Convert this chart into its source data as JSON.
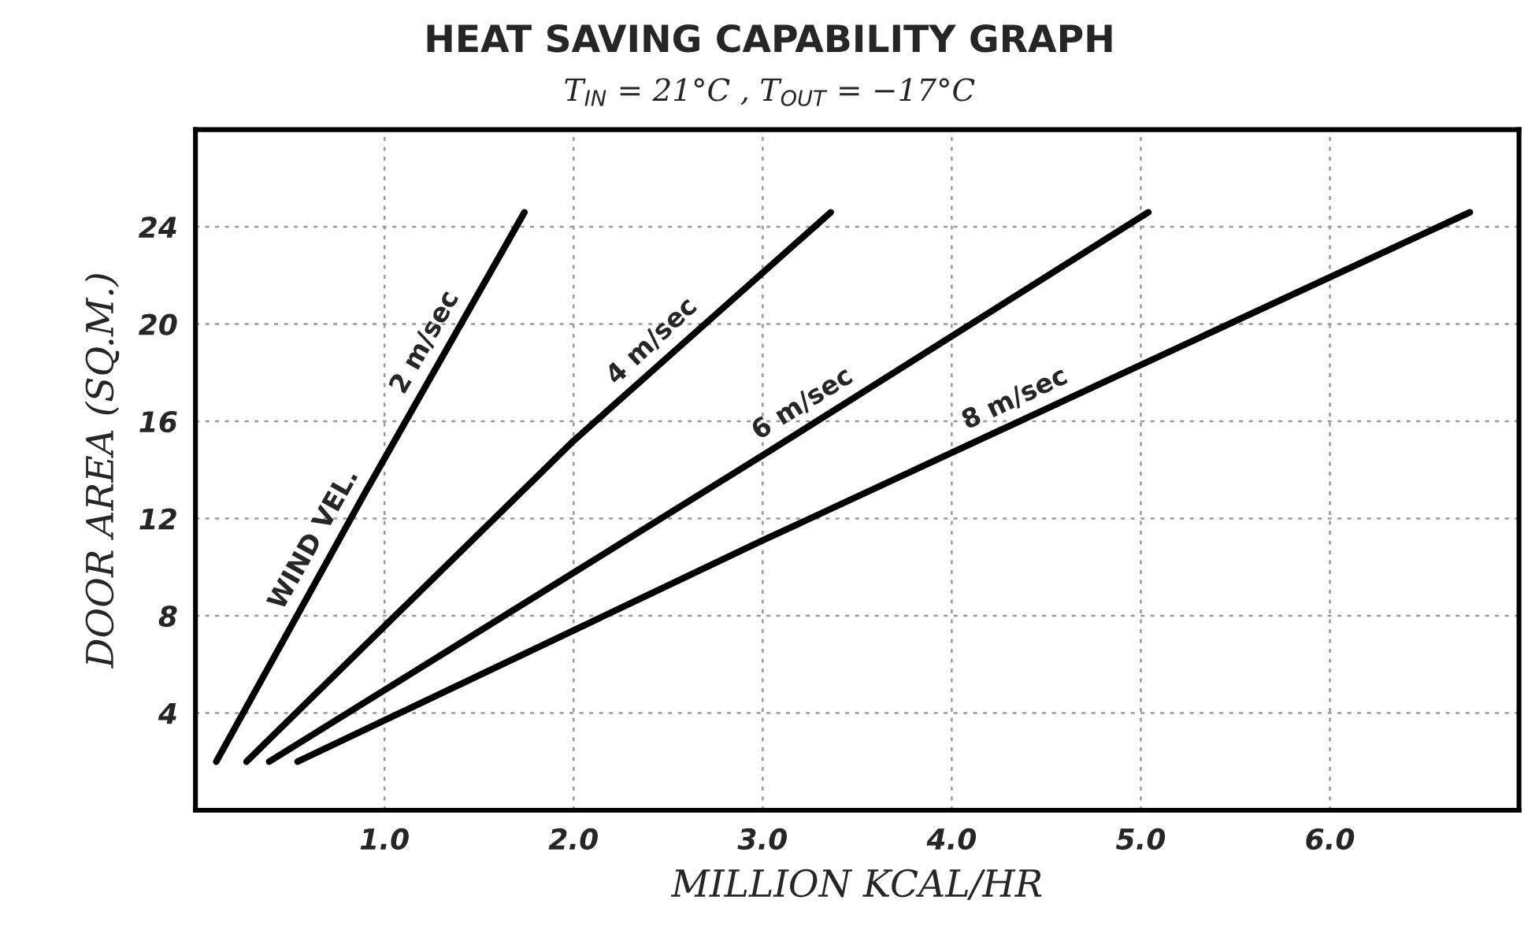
{
  "chart_data": {
    "type": "line",
    "title": "HEAT SAVING CAPABILITY GRAPH",
    "subtitle": "T$_{IN}$ = 21°C , T$_{OUT}$ = −17°C",
    "xlabel": "MILLION KCAL/HR",
    "ylabel": "DOOR AREA (SQ.M.)",
    "annotations": [
      "WIND VEL."
    ],
    "series": [
      {
        "name": "2 m/sec",
        "color": "#000000",
        "x": [
          0.11,
          0.9,
          1.74
        ],
        "values": [
          2,
          13.1,
          24.6
        ]
      },
      {
        "name": "4 m/sec",
        "color": "#000000",
        "x": [
          0.27,
          2.0,
          3.36
        ],
        "values": [
          2,
          15.2,
          24.6
        ]
      },
      {
        "name": "6 m/sec",
        "color": "#000000",
        "x": [
          0.39,
          3.0,
          5.04
        ],
        "values": [
          2,
          14.6,
          24.6
        ]
      },
      {
        "name": "8 m/sec",
        "color": "#000000",
        "x": [
          0.54,
          3.0,
          6.74
        ],
        "values": [
          2,
          11.1,
          24.6
        ]
      }
    ],
    "xlim": [
      0,
      7
    ],
    "ylim": [
      0,
      28
    ],
    "xticks": [
      {
        "value": 1,
        "label": "1.0"
      },
      {
        "value": 2,
        "label": "2.0"
      },
      {
        "value": 3,
        "label": "3.0"
      },
      {
        "value": 4,
        "label": "4.0"
      },
      {
        "value": 5,
        "label": "5.0"
      },
      {
        "value": 6,
        "label": "6.0"
      }
    ],
    "yticks": [
      4,
      8,
      12,
      16,
      20,
      24
    ],
    "grid": true,
    "legend": false,
    "marker": "none",
    "line_style": "solid"
  }
}
